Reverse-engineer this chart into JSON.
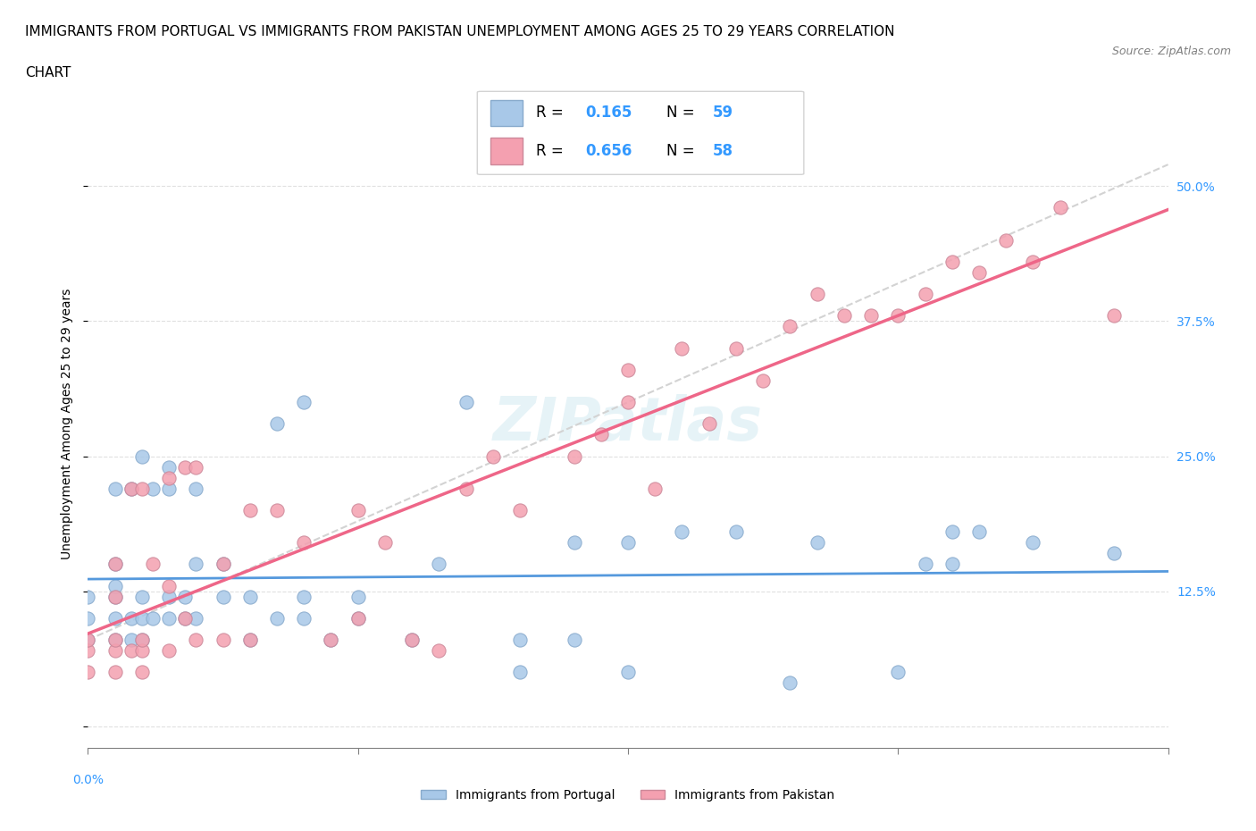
{
  "title_line1": "IMMIGRANTS FROM PORTUGAL VS IMMIGRANTS FROM PAKISTAN UNEMPLOYMENT AMONG AGES 25 TO 29 YEARS CORRELATION",
  "title_line2": "CHART",
  "source_text": "Source: ZipAtlas.com",
  "ylabel": "Unemployment Among Ages 25 to 29 years",
  "xlim": [
    0.0,
    0.2
  ],
  "ylim": [
    -0.02,
    0.58
  ],
  "portugal_color": "#a8c8e8",
  "pakistan_color": "#f4a0b0",
  "portugal_edge": "#88aacc",
  "pakistan_edge": "#cc8899",
  "portugal_line_color": "#5599dd",
  "pakistan_line_color": "#ee6688",
  "portugal_R": "0.165",
  "portugal_N": "59",
  "pakistan_R": "0.656",
  "pakistan_N": "58",
  "stat_color": "#3399ff",
  "watermark": "ZIPatlas",
  "portugal_scatter_x": [
    0.0,
    0.0,
    0.0,
    0.005,
    0.005,
    0.005,
    0.005,
    0.005,
    0.005,
    0.008,
    0.008,
    0.008,
    0.01,
    0.01,
    0.01,
    0.01,
    0.012,
    0.012,
    0.015,
    0.015,
    0.015,
    0.015,
    0.018,
    0.018,
    0.02,
    0.02,
    0.02,
    0.025,
    0.025,
    0.03,
    0.03,
    0.035,
    0.035,
    0.04,
    0.04,
    0.04,
    0.045,
    0.05,
    0.05,
    0.06,
    0.065,
    0.07,
    0.08,
    0.08,
    0.09,
    0.09,
    0.1,
    0.1,
    0.11,
    0.12,
    0.13,
    0.135,
    0.15,
    0.155,
    0.16,
    0.16,
    0.165,
    0.175,
    0.19
  ],
  "portugal_scatter_y": [
    0.08,
    0.1,
    0.12,
    0.08,
    0.1,
    0.12,
    0.13,
    0.15,
    0.22,
    0.08,
    0.1,
    0.22,
    0.08,
    0.1,
    0.12,
    0.25,
    0.1,
    0.22,
    0.1,
    0.12,
    0.22,
    0.24,
    0.1,
    0.12,
    0.1,
    0.15,
    0.22,
    0.12,
    0.15,
    0.08,
    0.12,
    0.1,
    0.28,
    0.1,
    0.12,
    0.3,
    0.08,
    0.1,
    0.12,
    0.08,
    0.15,
    0.3,
    0.05,
    0.08,
    0.08,
    0.17,
    0.05,
    0.17,
    0.18,
    0.18,
    0.04,
    0.17,
    0.05,
    0.15,
    0.18,
    0.15,
    0.18,
    0.17,
    0.16
  ],
  "pakistan_scatter_x": [
    0.0,
    0.0,
    0.0,
    0.005,
    0.005,
    0.005,
    0.005,
    0.005,
    0.008,
    0.008,
    0.01,
    0.01,
    0.01,
    0.01,
    0.012,
    0.015,
    0.015,
    0.015,
    0.018,
    0.018,
    0.02,
    0.02,
    0.025,
    0.025,
    0.03,
    0.03,
    0.035,
    0.04,
    0.045,
    0.05,
    0.05,
    0.055,
    0.06,
    0.065,
    0.07,
    0.075,
    0.08,
    0.09,
    0.095,
    0.1,
    0.1,
    0.105,
    0.11,
    0.115,
    0.12,
    0.125,
    0.13,
    0.135,
    0.14,
    0.145,
    0.15,
    0.155,
    0.16,
    0.165,
    0.17,
    0.175,
    0.18,
    0.19
  ],
  "pakistan_scatter_y": [
    0.05,
    0.07,
    0.08,
    0.05,
    0.07,
    0.08,
    0.12,
    0.15,
    0.07,
    0.22,
    0.05,
    0.07,
    0.08,
    0.22,
    0.15,
    0.07,
    0.13,
    0.23,
    0.1,
    0.24,
    0.08,
    0.24,
    0.08,
    0.15,
    0.08,
    0.2,
    0.2,
    0.17,
    0.08,
    0.1,
    0.2,
    0.17,
    0.08,
    0.07,
    0.22,
    0.25,
    0.2,
    0.25,
    0.27,
    0.3,
    0.33,
    0.22,
    0.35,
    0.28,
    0.35,
    0.32,
    0.37,
    0.4,
    0.38,
    0.38,
    0.38,
    0.4,
    0.43,
    0.42,
    0.45,
    0.43,
    0.48,
    0.38
  ]
}
